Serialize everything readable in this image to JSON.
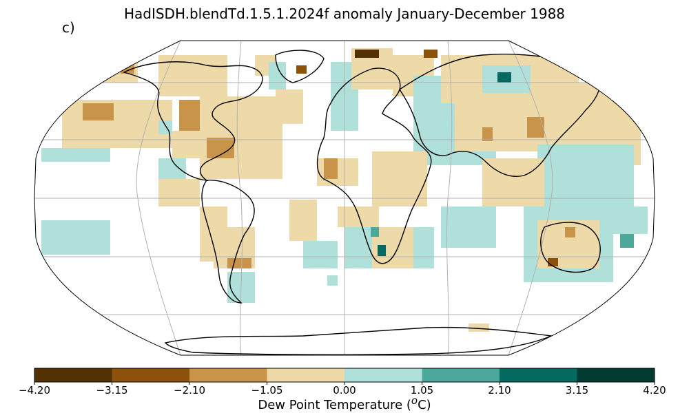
{
  "title": "HadISDH.blendTd.1.5.1.2024f anomaly January-December 1988",
  "panel_label": "c)",
  "colorbar": {
    "label_prefix": "Dew Point Temperature (",
    "label_unit_sup": "o",
    "label_suffix": "C)",
    "ticks": [
      "−4.20",
      "−3.15",
      "−2.10",
      "−1.05",
      "0.00",
      "1.05",
      "2.10",
      "3.15",
      "4.20"
    ],
    "tick_values": [
      -4.2,
      -3.15,
      -2.1,
      -1.05,
      0.0,
      1.05,
      2.1,
      3.15,
      4.2
    ],
    "colors": [
      "#543005",
      "#8c510a",
      "#c89449",
      "#eedaa8",
      "#b0e0da",
      "#4ba89a",
      "#04695e",
      "#003c30"
    ]
  },
  "map": {
    "projection": "robinson",
    "gridlines": true,
    "land_color": "#ffffff",
    "coastline_color": "#000000"
  }
}
